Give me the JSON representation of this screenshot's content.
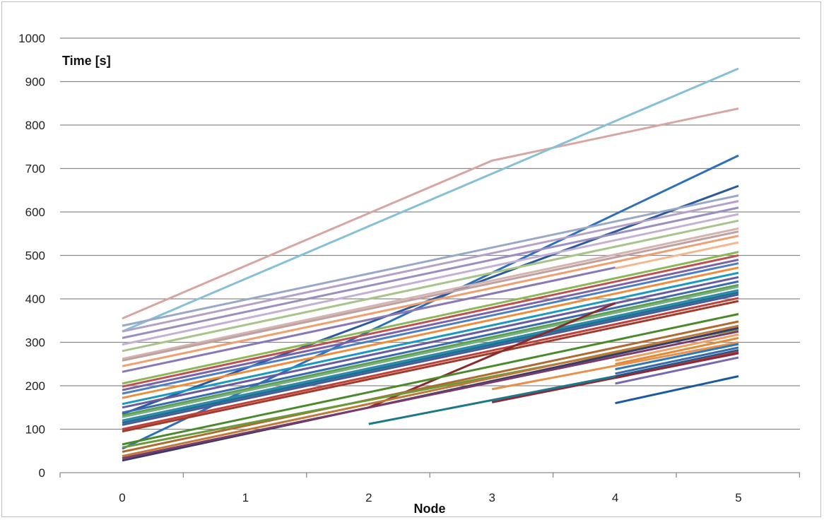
{
  "chart_data": {
    "type": "line",
    "title": "",
    "ylabel": "Time [s]",
    "xlabel": "Node",
    "x_ticks": [
      "0",
      "1",
      "2",
      "3",
      "4",
      "5"
    ],
    "y_ticks": [
      "0",
      "100",
      "200",
      "300",
      "400",
      "500",
      "600",
      "700",
      "800",
      "900",
      "1000"
    ],
    "xlim": [
      0,
      5
    ],
    "ylim": [
      0,
      1000
    ],
    "grid": "horizontal",
    "legend": "none",
    "series": [
      {
        "color": "#d6a6a3",
        "points": [
          [
            0,
            355
          ],
          [
            3,
            718
          ],
          [
            5,
            838
          ]
        ]
      },
      {
        "color": "#86c0d6",
        "points": [
          [
            0,
            325
          ],
          [
            5,
            930
          ]
        ]
      },
      {
        "color": "#2e6fba",
        "points": [
          [
            0,
            55
          ],
          [
            5,
            730
          ]
        ]
      },
      {
        "color": "#2a5a9c",
        "points": [
          [
            0,
            135
          ],
          [
            5,
            660
          ]
        ]
      },
      {
        "color": "#9aa8c8",
        "points": [
          [
            0,
            338
          ],
          [
            5,
            638
          ]
        ]
      },
      {
        "color": "#b5a0c8",
        "points": [
          [
            0,
            325
          ],
          [
            5,
            625
          ]
        ]
      },
      {
        "color": "#9c8ec0",
        "points": [
          [
            0,
            310
          ],
          [
            5,
            610
          ]
        ]
      },
      {
        "color": "#c4b0d2",
        "points": [
          [
            0,
            295
          ],
          [
            5,
            595
          ]
        ]
      },
      {
        "color": "#a8c48a",
        "points": [
          [
            0,
            280
          ],
          [
            5,
            580
          ]
        ]
      },
      {
        "color": "#d4b4b0",
        "points": [
          [
            0,
            262
          ],
          [
            5,
            562
          ]
        ]
      },
      {
        "color": "#c0a0a0",
        "points": [
          [
            0,
            258
          ],
          [
            5,
            555
          ]
        ]
      },
      {
        "color": "#f0a070",
        "points": [
          [
            0,
            245
          ],
          [
            5,
            545
          ]
        ]
      },
      {
        "color": "#8878b8",
        "points": [
          [
            0,
            232
          ],
          [
            4,
            472
          ]
        ]
      },
      {
        "color": "#f4b890",
        "points": [
          [
            4,
            470
          ],
          [
            5,
            530
          ]
        ]
      },
      {
        "color": "#8ab858",
        "points": [
          [
            0,
            205
          ],
          [
            5,
            508
          ]
        ]
      },
      {
        "color": "#c05050",
        "points": [
          [
            0,
            198
          ],
          [
            5,
            500
          ]
        ]
      },
      {
        "color": "#7a62a8",
        "points": [
          [
            0,
            190
          ],
          [
            5,
            490
          ]
        ]
      },
      {
        "color": "#4a7ec8",
        "points": [
          [
            0,
            182
          ],
          [
            5,
            482
          ]
        ]
      },
      {
        "color": "#f08c3a",
        "points": [
          [
            0,
            172
          ],
          [
            5,
            472
          ]
        ]
      },
      {
        "color": "#1a9ac0",
        "points": [
          [
            0,
            158
          ],
          [
            5,
            460
          ]
        ]
      },
      {
        "color": "#6a5aa0",
        "points": [
          [
            0,
            150
          ],
          [
            5,
            450
          ]
        ]
      },
      {
        "color": "#3a6ab0",
        "points": [
          [
            0,
            138
          ],
          [
            5,
            440
          ]
        ]
      },
      {
        "color": "#5aa050",
        "points": [
          [
            0,
            132
          ],
          [
            5,
            432
          ]
        ]
      },
      {
        "color": "#7ab080",
        "points": [
          [
            0,
            128
          ],
          [
            5,
            428
          ]
        ]
      },
      {
        "color": "#2a8aa8",
        "points": [
          [
            0,
            120
          ],
          [
            5,
            420
          ]
        ]
      },
      {
        "color": "#1a7090",
        "points": [
          [
            0,
            115
          ],
          [
            5,
            415
          ]
        ]
      },
      {
        "color": "#4a5a9a",
        "points": [
          [
            0,
            110
          ],
          [
            5,
            410
          ]
        ]
      },
      {
        "color": "#c0403a",
        "points": [
          [
            0,
            100
          ],
          [
            5,
            402
          ]
        ]
      },
      {
        "color": "#a03a2a",
        "points": [
          [
            0,
            95
          ],
          [
            5,
            395
          ]
        ]
      },
      {
        "color": "#8a2a2a",
        "points": [
          [
            2,
            150
          ],
          [
            4,
            390
          ]
        ]
      },
      {
        "color": "#4a8a2a",
        "points": [
          [
            0,
            65
          ],
          [
            5,
            365
          ]
        ]
      },
      {
        "color": "#b06a30",
        "points": [
          [
            0,
            48
          ],
          [
            5,
            348
          ]
        ]
      },
      {
        "color": "#6a9a3a",
        "points": [
          [
            0,
            58
          ],
          [
            5,
            330
          ]
        ]
      },
      {
        "color": "#c07838",
        "points": [
          [
            0,
            38
          ],
          [
            5,
            338
          ]
        ]
      },
      {
        "color": "#3a3a6a",
        "points": [
          [
            0,
            28
          ],
          [
            5,
            333
          ]
        ]
      },
      {
        "color": "#7a3a6a",
        "points": [
          [
            0,
            33
          ],
          [
            5,
            325
          ]
        ]
      },
      {
        "color": "#f0a060",
        "points": [
          [
            4,
            258
          ],
          [
            5,
            318
          ]
        ]
      },
      {
        "color": "#e08a3a",
        "points": [
          [
            4,
            250
          ],
          [
            5,
            310
          ]
        ]
      },
      {
        "color": "#e89048",
        "points": [
          [
            3,
            192
          ],
          [
            5,
            300
          ]
        ]
      },
      {
        "color": "#2a78c0",
        "points": [
          [
            4,
            238
          ],
          [
            5,
            296
          ]
        ]
      },
      {
        "color": "#3a6aa8",
        "points": [
          [
            4,
            228
          ],
          [
            5,
            288
          ]
        ]
      },
      {
        "color": "#1a5a8a",
        "points": [
          [
            4,
            222
          ],
          [
            5,
            282
          ]
        ]
      },
      {
        "color": "#c03a3a",
        "points": [
          [
            4,
            218
          ],
          [
            5,
            278
          ]
        ]
      },
      {
        "color": "#8a2a3a",
        "points": [
          [
            3,
            162
          ],
          [
            5,
            275
          ]
        ]
      },
      {
        "color": "#7868b0",
        "points": [
          [
            4,
            205
          ],
          [
            5,
            265
          ]
        ]
      },
      {
        "color": "#1a7a8a",
        "points": [
          [
            2,
            112
          ],
          [
            4,
            222
          ]
        ]
      },
      {
        "color": "#1a5aa0",
        "points": [
          [
            4,
            160
          ],
          [
            5,
            222
          ]
        ]
      }
    ]
  }
}
